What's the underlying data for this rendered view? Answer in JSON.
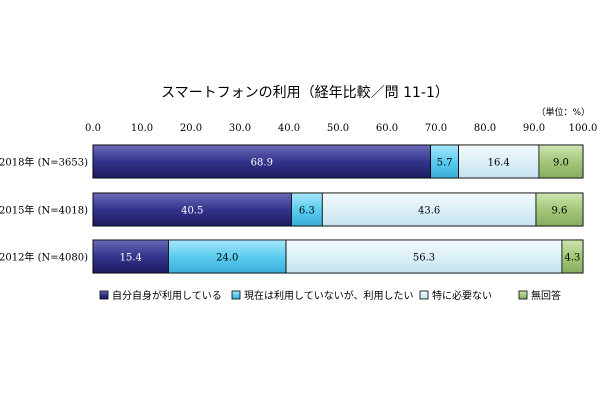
{
  "chart_data": {
    "type": "bar",
    "orientation": "horizontal",
    "stacked": true,
    "title": "スマートフォンの利用（経年比較／問 11-1）",
    "unit_label": "（単位：%）",
    "xlim": [
      0,
      100
    ],
    "xticks": [
      "0.0",
      "10.0",
      "20.0",
      "30.0",
      "40.0",
      "50.0",
      "60.0",
      "70.0",
      "80.0",
      "90.0",
      "100.0"
    ],
    "categories": [
      "2018年 (N=3653)",
      "2015年 (N=4018)",
      "2012年 (N=4080)"
    ],
    "series": [
      {
        "name": "自分自身が利用している",
        "values": [
          68.9,
          40.5,
          15.4
        ],
        "color": "#34348c",
        "label_color": "#ffffff"
      },
      {
        "name": "現在は利用していないが、利用したい",
        "values": [
          5.7,
          6.3,
          24.0
        ],
        "color": "#5ccdf0",
        "label_color": "#000000"
      },
      {
        "name": "特に必要ない",
        "values": [
          16.4,
          43.6,
          56.3
        ],
        "color": "#dcf0f8",
        "label_color": "#000000"
      },
      {
        "name": "無回答",
        "values": [
          9.0,
          9.6,
          4.3
        ],
        "color": "#a2c878",
        "label_color": "#000000"
      }
    ],
    "legend_position": "bottom",
    "grid": false
  }
}
